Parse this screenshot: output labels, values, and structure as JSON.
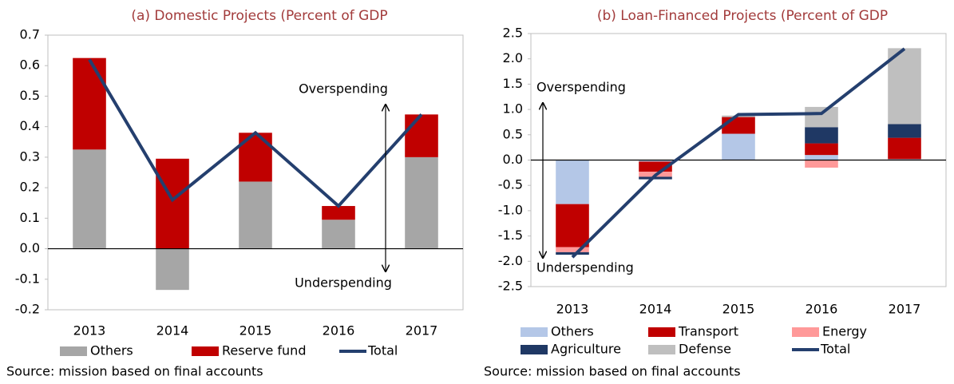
{
  "chart_data": [
    {
      "type": "bar",
      "stacked": true,
      "title": "(a) Domestic Projects (Percent of GDP",
      "source": "Source: mission based on final accounts",
      "annotations": [
        "Overspending",
        "Underspending"
      ],
      "categories": [
        "2013",
        "2014",
        "2015",
        "2016",
        "2017"
      ],
      "series": [
        {
          "name": "Others",
          "color": "#a6a6a6",
          "values": [
            0.325,
            -0.135,
            0.22,
            0.095,
            0.3
          ]
        },
        {
          "name": "Reserve fund",
          "color": "#c00000",
          "values": [
            0.3,
            0.295,
            0.16,
            0.045,
            0.14
          ]
        },
        {
          "name": "Total",
          "type": "line",
          "color": "#243f6e",
          "values": [
            0.62,
            0.16,
            0.38,
            0.14,
            0.44
          ]
        }
      ],
      "ylim": [
        -0.2,
        0.7
      ],
      "yticks": [
        -0.2,
        -0.1,
        {
          "value": 0,
          "label": "0.0"
        },
        0.1,
        0.2,
        0.3,
        0.4,
        0.5,
        0.6,
        0.7
      ]
    },
    {
      "type": "bar",
      "stacked": true,
      "title": "(b) Loan-Financed Projects (Percent of GDP",
      "source": "Source: mission based on final accounts",
      "annotations": [
        "Overspending",
        "Underspending"
      ],
      "categories": [
        "2013",
        "2014",
        "2015",
        "2016",
        "2017"
      ],
      "series": [
        {
          "name": "Others",
          "color": "#b4c7e7",
          "values": [
            -0.87,
            -0.03,
            0.52,
            0.1,
            0.02
          ]
        },
        {
          "name": "Transport",
          "color": "#c00000",
          "values": [
            -0.85,
            -0.2,
            0.33,
            0.23,
            0.42
          ]
        },
        {
          "name": "Energy",
          "color": "#ff9999",
          "values": [
            -0.1,
            -0.1,
            0,
            -0.15,
            0
          ]
        },
        {
          "name": "Agriculture",
          "color": "#1f3864",
          "values": [
            -0.05,
            -0.05,
            0,
            0.32,
            0.27
          ]
        },
        {
          "name": "Defense",
          "color": "#bfbfbf",
          "values": [
            0,
            0,
            0.03,
            0.4,
            1.5
          ]
        },
        {
          "name": "Total",
          "type": "line",
          "color": "#243f6e",
          "values": [
            -1.92,
            -0.3,
            0.9,
            0.92,
            2.2
          ]
        }
      ],
      "ylim": [
        -2.5,
        2.5
      ],
      "yticks": [
        -2.5,
        {
          "value": -2,
          "label": "-2.0"
        },
        -1.5,
        {
          "value": -1,
          "label": "-1.0"
        },
        -0.5,
        {
          "value": 0,
          "label": "0.0"
        },
        0.5,
        {
          "value": 1,
          "label": "1.0"
        },
        1.5,
        {
          "value": 2,
          "label": "2.0"
        },
        2.5
      ]
    }
  ]
}
